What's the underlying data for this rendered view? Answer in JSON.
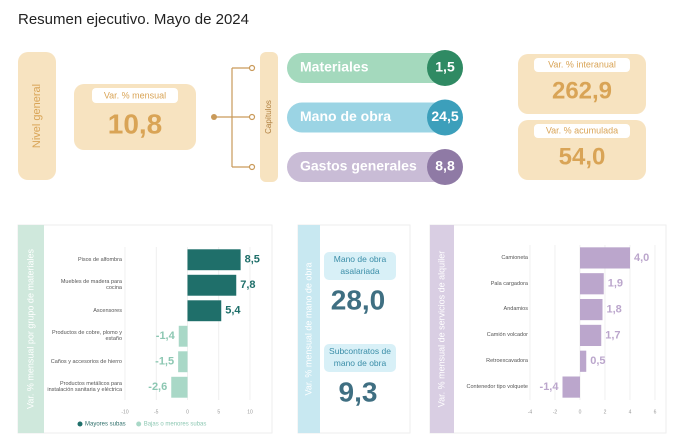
{
  "title": "Resumen ejecutivo. Mayo de 2024",
  "nivel_general": {
    "label": "Nivel general",
    "card_label": "Var. % mensual",
    "card_value": "10,8"
  },
  "capitulos": {
    "label": "Capítulos",
    "items": [
      {
        "name": "Materiales",
        "value": "1,5"
      },
      {
        "name": "Mano de obra",
        "value": "24,5"
      },
      {
        "name": "Gastos generales",
        "value": "8,8"
      }
    ]
  },
  "acumulados": [
    {
      "label": "Var. % interanual",
      "value": "262,9"
    },
    {
      "label": "Var. % acumulada",
      "value": "54,0"
    }
  ],
  "mano_de_obra": {
    "label": "Var. % mensual de mano de obra",
    "items": [
      {
        "label": "Mano de obra asalariada",
        "value": "28,0"
      },
      {
        "label": "Subcontratos de mano de obra",
        "value": "9,3"
      }
    ]
  },
  "chart_data": [
    {
      "type": "bar",
      "orientation": "horizontal",
      "axis_label": "Var. % mensual por grupo de materiales",
      "categories": [
        "Pisos de alfombra",
        "Muebles de madera para cocina",
        "Ascensores",
        "Productos de cobre, plomo y estaño",
        "Caños y accesorios de hierro",
        "Productos metálicos para instalación sanitaria y eléctrica"
      ],
      "series": [
        {
          "name": "Mayores subas",
          "color": "#1f6f6a",
          "values": [
            8.5,
            7.8,
            5.4,
            null,
            null,
            null
          ],
          "value_labels": [
            "8,5",
            "7,8",
            "5,4",
            null,
            null,
            null
          ]
        },
        {
          "name": "Bajas o menores subas",
          "color": "#a9d8c7",
          "values": [
            null,
            null,
            null,
            -1.4,
            -1.5,
            -2.6
          ],
          "value_labels": [
            null,
            null,
            null,
            "-1,4",
            "-1,5",
            "-2,6"
          ]
        }
      ],
      "xlim": [
        -10,
        10
      ],
      "xticks": [
        -10,
        -5,
        0,
        5,
        10
      ],
      "grid": true
    },
    {
      "type": "bar",
      "orientation": "horizontal",
      "axis_label": "Var. % mensual de servicios de alquiler",
      "categories": [
        "Camioneta",
        "Pala cargadora",
        "Andamios",
        "Camión volcador",
        "Retroexcavadora",
        "Contenedor tipo volquete"
      ],
      "values": [
        4.0,
        1.9,
        1.8,
        1.7,
        0.5,
        -1.4
      ],
      "value_labels": [
        "4,0",
        "1,9",
        "1,8",
        "1,7",
        "0,5",
        "-1,4"
      ],
      "color": "#bba6cc",
      "xlim": [
        -4,
        6
      ],
      "xticks": [
        -4,
        -2,
        0,
        2,
        4,
        6
      ],
      "grid": true
    }
  ]
}
